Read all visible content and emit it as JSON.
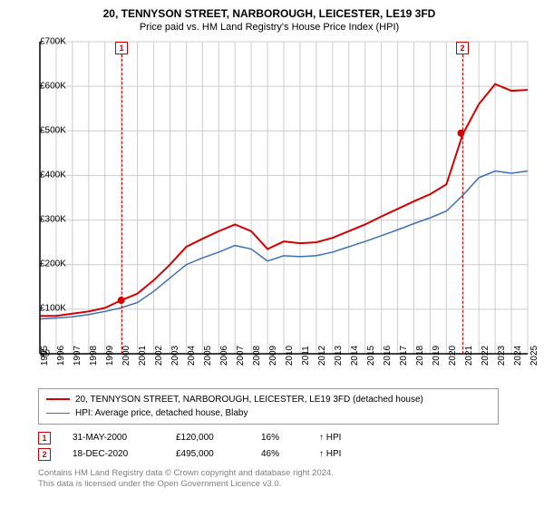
{
  "title": "20, TENNYSON STREET, NARBOROUGH, LEICESTER, LE19 3FD",
  "subtitle": "Price paid vs. HM Land Registry's House Price Index (HPI)",
  "chart": {
    "type": "line",
    "background_color": "#ffffff",
    "grid_color": "#cccccc",
    "axis_color": "#000000",
    "label_fontsize": 10,
    "x_years": [
      "1995",
      "1996",
      "1997",
      "1998",
      "1999",
      "2000",
      "2001",
      "2002",
      "2003",
      "2004",
      "2005",
      "2006",
      "2007",
      "2008",
      "2009",
      "2010",
      "2011",
      "2012",
      "2013",
      "2014",
      "2015",
      "2016",
      "2017",
      "2018",
      "2019",
      "2020",
      "2021",
      "2022",
      "2023",
      "2024",
      "2025"
    ],
    "y_ticks": [
      "£0",
      "£100K",
      "£200K",
      "£300K",
      "£400K",
      "£500K",
      "£600K",
      "£700K"
    ],
    "ylim": [
      0,
      700000
    ],
    "series": [
      {
        "name": "price_paid",
        "label": "20, TENNYSON STREET, NARBOROUGH, LEICESTER, LE19 3FD (detached house)",
        "color": "#d40000",
        "line_width": 2,
        "values": [
          85000,
          85000,
          90000,
          95000,
          103000,
          120000,
          135000,
          165000,
          200000,
          240000,
          258000,
          275000,
          290000,
          275000,
          235000,
          252000,
          248000,
          250000,
          260000,
          275000,
          290000,
          308000,
          325000,
          342000,
          358000,
          380000,
          492000,
          560000,
          605000,
          590000,
          592000
        ]
      },
      {
        "name": "hpi",
        "label": "HPI: Average price, detached house, Blaby",
        "color": "#3b6fb6",
        "line_width": 1.5,
        "values": [
          78000,
          80000,
          83000,
          88000,
          95000,
          103000,
          115000,
          140000,
          170000,
          200000,
          215000,
          228000,
          243000,
          235000,
          208000,
          220000,
          218000,
          220000,
          228000,
          240000,
          252000,
          265000,
          278000,
          292000,
          305000,
          320000,
          355000,
          395000,
          410000,
          405000,
          410000
        ]
      }
    ],
    "markers": [
      {
        "id": "1",
        "x_year": "2000",
        "y_value": 120000,
        "color": "#d40000"
      },
      {
        "id": "2",
        "x_year": "2020.9",
        "y_value": 495000,
        "color": "#d40000"
      }
    ],
    "top_markers": [
      {
        "id": "1",
        "x_year": "2000",
        "color": "#d40000"
      },
      {
        "id": "2",
        "x_year": "2020.9",
        "color": "#d40000"
      }
    ]
  },
  "sales": [
    {
      "id": "1",
      "date": "31-MAY-2000",
      "price": "£120,000",
      "pct": "16%",
      "arrow": "↑",
      "vs": "HPI",
      "color": "#d40000"
    },
    {
      "id": "2",
      "date": "18-DEC-2020",
      "price": "£495,000",
      "pct": "46%",
      "arrow": "↑",
      "vs": "HPI",
      "color": "#d40000"
    }
  ],
  "footnote_line1": "Contains HM Land Registry data © Crown copyright and database right 2024.",
  "footnote_line2": "This data is licensed under the Open Government Licence v3.0."
}
